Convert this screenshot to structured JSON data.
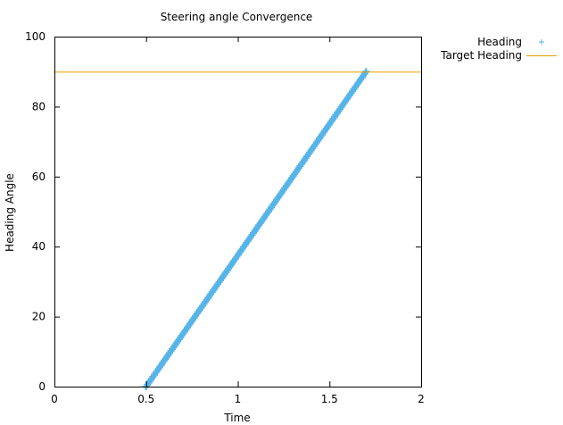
{
  "chart_data": {
    "type": "scatter",
    "title": "Steering angle Convergence",
    "xlabel": "Time",
    "ylabel": "Heading Angle",
    "xlim": [
      0,
      2
    ],
    "ylim": [
      0,
      100
    ],
    "x_ticks": [
      {
        "value": 0,
        "label": "0"
      },
      {
        "value": 0.5,
        "label": "0.5"
      },
      {
        "value": 1,
        "label": "1"
      },
      {
        "value": 1.5,
        "label": "1.5"
      },
      {
        "value": 2,
        "label": "2"
      }
    ],
    "y_ticks": [
      {
        "value": 0,
        "label": "0"
      },
      {
        "value": 20,
        "label": "20"
      },
      {
        "value": 40,
        "label": "40"
      },
      {
        "value": 60,
        "label": "60"
      },
      {
        "value": 80,
        "label": "80"
      },
      {
        "value": 100,
        "label": "100"
      }
    ],
    "grid": false,
    "legend_position": "outside-top-right",
    "series": [
      {
        "name": "Heading",
        "style": "points",
        "marker": "+",
        "color": "#56b4e9",
        "x_range": [
          0.5,
          1.7
        ],
        "y_range": [
          0,
          90
        ]
      },
      {
        "name": "Target Heading",
        "style": "line",
        "color": "#e69f00",
        "constant_y": 90
      }
    ]
  }
}
